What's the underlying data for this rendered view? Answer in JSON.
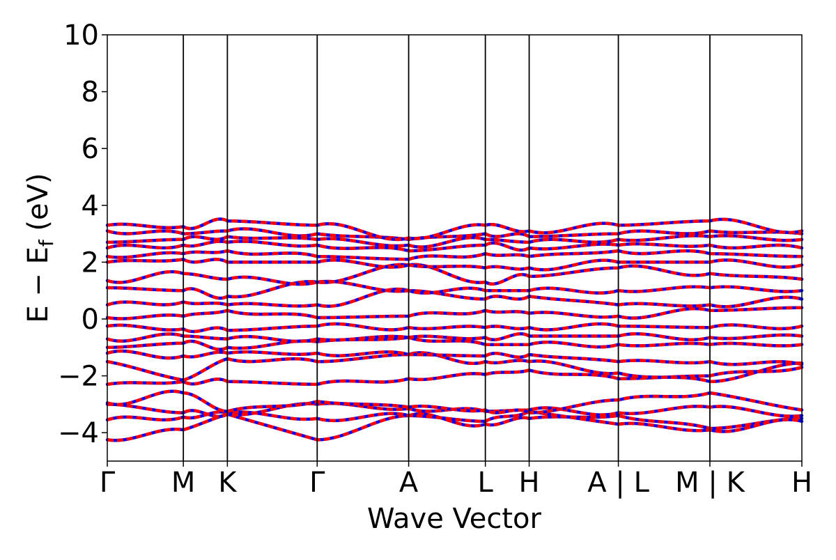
{
  "chart_data": {
    "type": "line",
    "xlabel": "Wave Vector",
    "ylabel_main": "E − E",
    "ylabel_sub": "f",
    "ylabel_unit": " (eV)",
    "ylim": [
      -5,
      10
    ],
    "yticks": [
      -4,
      -2,
      0,
      2,
      4,
      6,
      8,
      10
    ],
    "ytick_labels": [
      "−4",
      "−2",
      "0",
      "2",
      "4",
      "6",
      "8",
      "10"
    ],
    "grid": false,
    "spin_colors": {
      "up": "#0000ff",
      "down": "#ff0000"
    },
    "kpath_labels": [
      "Γ",
      "M",
      "K",
      "Γ",
      "A",
      "L",
      "H",
      "A | L",
      "M | K",
      "H"
    ],
    "kpath_positions": [
      0,
      0.1095,
      0.1729,
      0.3022,
      0.4339,
      0.5443,
      0.6074,
      0.7358,
      0.8676,
      1.0
    ],
    "segment_breaks": [
      0.7358,
      0.8676
    ],
    "energy_range_shown": [
      -4.3,
      3.5
    ],
    "bands": [
      {
        "name": "b1",
        "e": [
          -4.25,
          -3.9,
          -3.35,
          -4.25,
          -3.4,
          -3.7,
          -3.5,
          -3.4,
          -3.85,
          -3.5
        ]
      },
      {
        "name": "b2",
        "e": [
          -3.55,
          -3.45,
          -3.3,
          -3.5,
          -3.4,
          -3.6,
          -3.25,
          -3.7,
          -3.9,
          -3.6
        ]
      },
      {
        "name": "b3",
        "e": [
          -3.0,
          -3.3,
          -3.35,
          -3.0,
          -3.15,
          -3.25,
          -3.2,
          -3.3,
          -3.1,
          -3.4
        ]
      },
      {
        "name": "b4",
        "e": [
          -2.95,
          -2.6,
          -3.25,
          -2.9,
          -3.1,
          -3.2,
          -3.3,
          -2.85,
          -2.6,
          -3.2
        ]
      },
      {
        "name": "b5",
        "e": [
          -2.3,
          -2.2,
          -2.2,
          -2.3,
          -2.1,
          -1.95,
          -1.8,
          -2.1,
          -2.0,
          -1.7
        ]
      },
      {
        "name": "b6",
        "e": [
          -1.5,
          -2.15,
          -1.4,
          -1.5,
          -1.25,
          -1.5,
          -1.5,
          -1.9,
          -2.2,
          -1.55
        ]
      },
      {
        "name": "b7",
        "e": [
          -1.2,
          -1.3,
          -1.2,
          -1.2,
          -1.25,
          -1.3,
          -1.25,
          -1.5,
          -1.5,
          -1.6
        ]
      },
      {
        "name": "b8",
        "e": [
          -1.0,
          -0.85,
          -1.0,
          -0.8,
          -0.65,
          -0.9,
          -0.9,
          -0.9,
          -0.9,
          -0.9
        ]
      },
      {
        "name": "b9",
        "e": [
          -0.7,
          -0.6,
          -0.7,
          -0.7,
          -0.65,
          -0.65,
          -0.6,
          -0.6,
          -0.65,
          -0.6
        ]
      },
      {
        "name": "b10",
        "e": [
          -0.25,
          -0.35,
          -0.4,
          -0.25,
          -0.3,
          -0.3,
          -0.3,
          -0.25,
          -0.3,
          -0.25
        ]
      },
      {
        "name": "b11",
        "e": [
          0.05,
          0.1,
          0.3,
          0.05,
          0.1,
          0.3,
          0.2,
          0.1,
          0.3,
          0.4
        ]
      },
      {
        "name": "b12",
        "e": [
          0.5,
          0.6,
          0.5,
          0.5,
          1.0,
          0.7,
          0.8,
          0.5,
          0.5,
          0.7
        ]
      },
      {
        "name": "b13",
        "e": [
          1.1,
          1.0,
          0.8,
          1.3,
          1.0,
          1.0,
          1.0,
          1.0,
          1.1,
          1.0
        ]
      },
      {
        "name": "b14",
        "e": [
          1.35,
          1.6,
          1.4,
          1.3,
          1.9,
          1.3,
          1.5,
          1.8,
          1.6,
          1.4
        ]
      },
      {
        "name": "b15",
        "e": [
          2.0,
          2.1,
          2.0,
          2.0,
          1.9,
          1.8,
          1.8,
          2.0,
          2.0,
          1.9
        ]
      },
      {
        "name": "b16",
        "e": [
          2.2,
          2.3,
          2.4,
          2.2,
          2.1,
          2.3,
          2.2,
          2.4,
          2.3,
          2.2
        ]
      },
      {
        "name": "b17",
        "e": [
          2.5,
          2.6,
          2.7,
          2.6,
          2.4,
          2.6,
          2.5,
          2.6,
          2.6,
          2.5
        ]
      },
      {
        "name": "b18",
        "e": [
          2.7,
          2.8,
          2.9,
          2.8,
          2.6,
          2.8,
          2.7,
          2.8,
          2.9,
          2.8
        ]
      },
      {
        "name": "b19",
        "e": [
          3.1,
          3.0,
          3.1,
          3.0,
          2.8,
          3.0,
          2.9,
          3.0,
          3.1,
          3.0
        ]
      },
      {
        "name": "b20",
        "e": [
          3.3,
          3.25,
          3.45,
          3.3,
          2.85,
          3.3,
          3.1,
          3.3,
          3.45,
          3.1
        ]
      }
    ]
  }
}
